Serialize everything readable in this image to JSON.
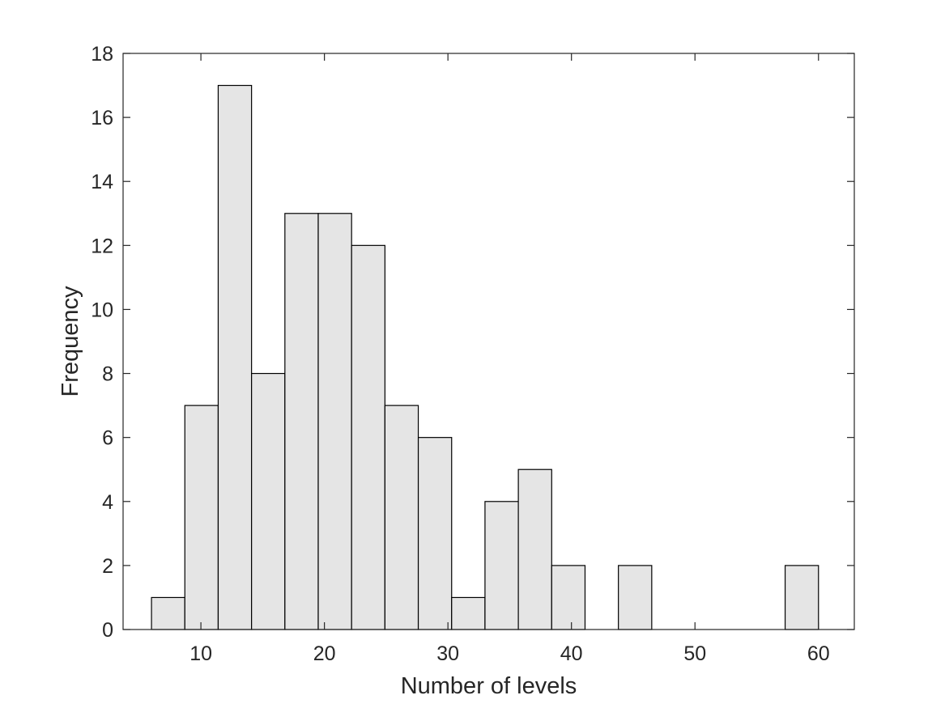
{
  "chart_data": {
    "type": "bar",
    "title": "",
    "xlabel": "Number of levels",
    "ylabel": "Frequency",
    "xlim": [
      3.7,
      62.9
    ],
    "ylim": [
      0,
      18
    ],
    "xticks": [
      10,
      20,
      30,
      40,
      50,
      60
    ],
    "yticks": [
      0,
      2,
      4,
      6,
      8,
      10,
      12,
      14,
      16,
      18
    ],
    "grid": false,
    "bin_edges": [
      6,
      8.7,
      11.4,
      14.1,
      16.8,
      19.5,
      22.2,
      24.9,
      27.6,
      30.3,
      33.0,
      35.7,
      38.4,
      41.1,
      43.8,
      46.5,
      49.2,
      51.9,
      54.6,
      57.3,
      60
    ],
    "values": [
      1,
      7,
      17,
      8,
      13,
      13,
      12,
      7,
      6,
      1,
      4,
      5,
      2,
      0,
      2,
      0,
      0,
      0,
      0,
      2
    ],
    "colors": {
      "bar_fill": "#e5e5e5",
      "bar_edge": "#000000",
      "axis": "#262626"
    }
  }
}
